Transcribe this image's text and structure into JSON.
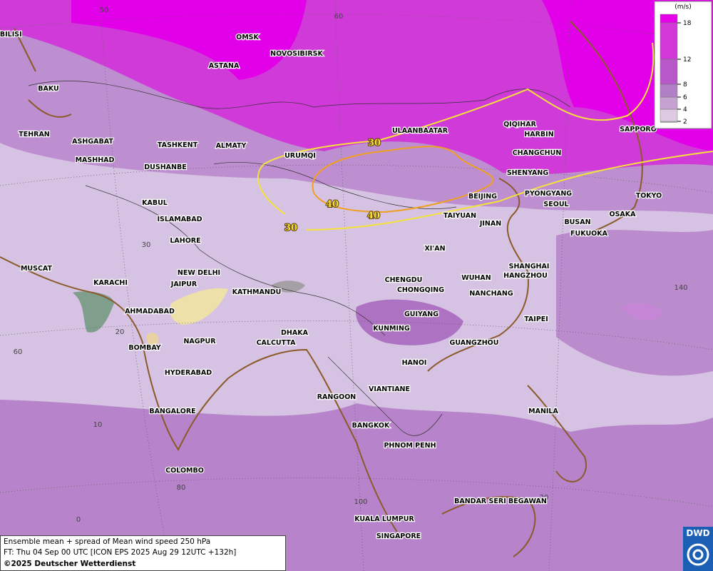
{
  "legend": {
    "unit": "(m/s)",
    "levels": [
      2,
      4,
      6,
      8,
      12,
      18
    ],
    "colors": [
      "#dccbe2",
      "#c6a2d2",
      "#b07fc6",
      "#b857c8",
      "#d238d8",
      "#e600e8"
    ]
  },
  "contour_labels": [
    30,
    40,
    40,
    30
  ],
  "grid_labels": [
    50,
    60,
    30,
    20,
    60,
    10,
    80,
    0,
    100,
    20,
    140
  ],
  "cities": [
    "TBILISI",
    "OMSK",
    "NOVOSIBIRSK",
    "ASTANA",
    "BAKU",
    "TEHRAN",
    "ASHGABAT",
    "TASHKENT",
    "ALMATY",
    "MASHHAD",
    "DUSHANBE",
    "URUMQI",
    "ULAANBAATAR",
    "QIQIHAR",
    "HARBIN",
    "CHANGCHUN",
    "SHENYANG",
    "SAPPORO",
    "BEIJING",
    "PYONGYANG",
    "SEOUL",
    "TOKYO",
    "OSAKA",
    "BUSAN",
    "FUKUOKA",
    "TAIYUAN",
    "JINAN",
    "KABUL",
    "ISLAMABAD",
    "LAHORE",
    "XI'AN",
    "MUSCAT",
    "NEW DELHI",
    "KARACHI",
    "JAIPUR",
    "KATHMANDU",
    "CHENGDU",
    "CHONGQING",
    "WUHAN",
    "SHANGHAI",
    "HANGZHOU",
    "NANCHANG",
    "AHMADABAD",
    "GUIYANG",
    "TAIPEI",
    "DHAKA",
    "KUNMING",
    "NAGPUR",
    "CALCUTTA",
    "GUANGZHOU",
    "BOMBAY",
    "HANOI",
    "HYDERABAD",
    "VIANTIANE",
    "RANGOON",
    "BANGALORE",
    "MANILA",
    "BANGKOK",
    "PHNOM PENH",
    "COLOMBO",
    "BANDAR SERI BEGAWAN",
    "KUALA LUMPUR",
    "SINGAPORE"
  ],
  "footer": {
    "title": "Ensemble mean + spread of Mean wind speed 250 hPa",
    "forecast": "FT: Thu 04 Sep 00 UTC [ICON EPS 2025 Aug 29 12UTC +132h]",
    "copyright": "©2025 Deutscher Wetterdienst"
  },
  "logo": "DWD"
}
